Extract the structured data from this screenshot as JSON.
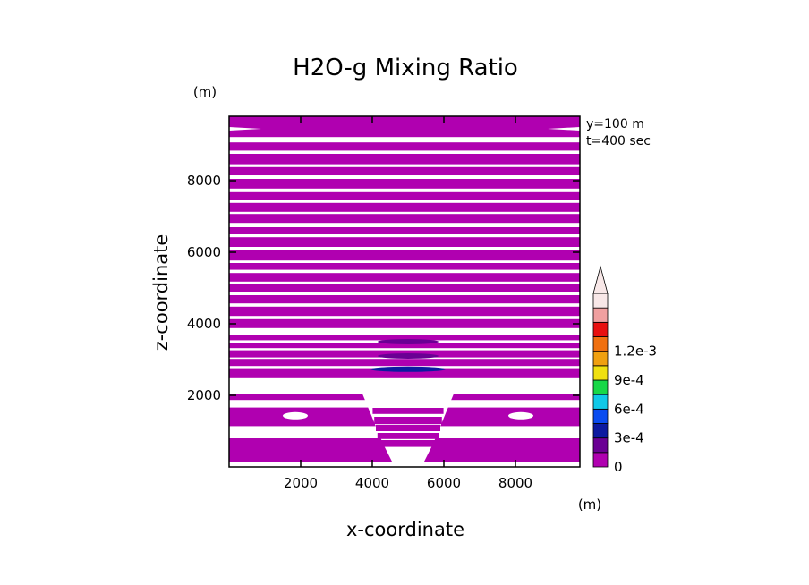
{
  "chart_data": {
    "type": "heatmap",
    "title": "H2O-g Mixing Ratio",
    "xlabel": "x-coordinate",
    "ylabel": "z-coordinate",
    "x_unit": "(m)",
    "y_unit": "(m)",
    "xlim": [
      0,
      9800
    ],
    "ylim": [
      0,
      9800
    ],
    "x_ticks": [
      2000,
      4000,
      6000,
      8000
    ],
    "y_ticks": [
      2000,
      4000,
      6000,
      8000
    ],
    "x_tick_labels": [
      "2000",
      "4000",
      "6000",
      "8000"
    ],
    "y_tick_labels": [
      "2000",
      "4000",
      "6000",
      "8000"
    ],
    "annotations": [
      "y=100 m",
      "t=400 sec"
    ],
    "colorbar": {
      "levels": [
        0,
        0.00015,
        0.0003,
        0.00045,
        0.0006,
        0.00075,
        0.0009,
        0.00105,
        0.0012,
        0.00135
      ],
      "colors": [
        "#b000b0",
        "#6a0094",
        "#0c1aa0",
        "#0a4cf0",
        "#10c8e8",
        "#18d848",
        "#f0e010",
        "#f0a010",
        "#f07010",
        "#e81010",
        "#f0a0a0",
        "#f8e8e8"
      ],
      "tick_values": [
        0,
        0.0003,
        0.0006,
        0.0009,
        0.0012
      ],
      "tick_labels": [
        "0",
        "3e-4",
        "6e-4",
        "9e-4",
        "1.2e-3"
      ],
      "extend": "max"
    },
    "field": {
      "background_value": "above-range",
      "bands_z": [
        [
          150,
          800
        ],
        [
          1140,
          1660
        ],
        [
          1870,
          2050
        ],
        [
          2480,
          2760
        ],
        [
          2820,
          3020
        ],
        [
          3060,
          3260
        ],
        [
          3320,
          3470
        ],
        [
          3540,
          3690
        ],
        [
          3880,
          4130
        ],
        [
          4220,
          4480
        ],
        [
          4570,
          4800
        ],
        [
          4900,
          5100
        ],
        [
          5180,
          5420
        ],
        [
          5510,
          5700
        ],
        [
          5770,
          6050
        ],
        [
          6150,
          6420
        ],
        [
          6500,
          6700
        ],
        [
          6820,
          7070
        ],
        [
          7130,
          7380
        ],
        [
          7450,
          7680
        ],
        [
          7780,
          8050
        ],
        [
          8150,
          8380
        ],
        [
          8460,
          8750
        ],
        [
          8840,
          9070
        ],
        [
          9220,
          9800
        ]
      ],
      "max_cells": [
        {
          "x": 5000,
          "z": 2730,
          "value": 0.0003
        },
        {
          "x": 5000,
          "z": 3100,
          "value": 0.00015
        },
        {
          "x": 5000,
          "z": 3500,
          "value": 0.00015
        }
      ]
    }
  }
}
